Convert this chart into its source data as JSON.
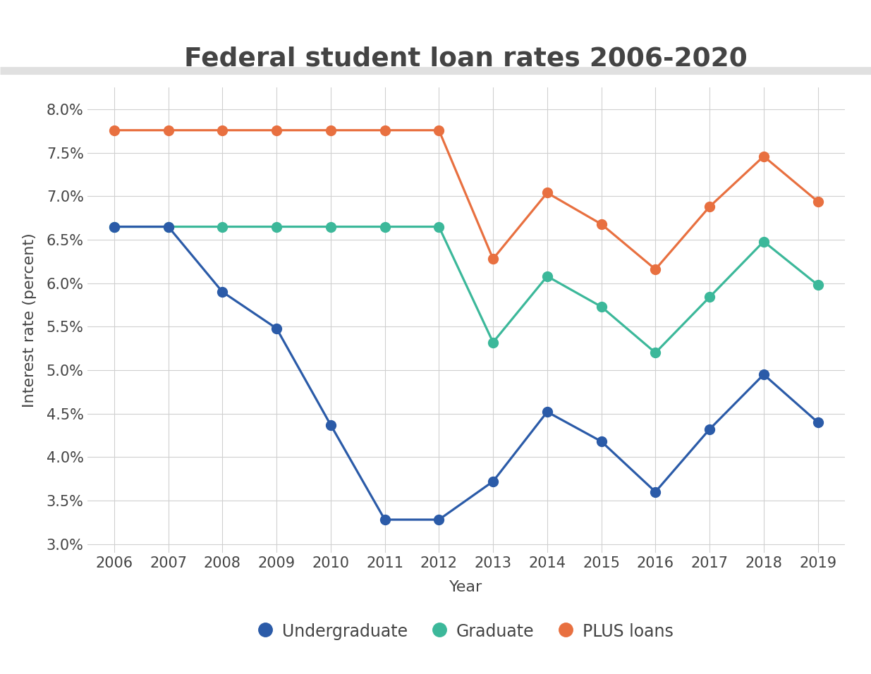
{
  "title": "Federal student loan rates 2006-2020",
  "xlabel": "Year",
  "ylabel": "Interest rate (percent)",
  "years": [
    2006,
    2007,
    2008,
    2009,
    2010,
    2011,
    2012,
    2013,
    2014,
    2015,
    2016,
    2017,
    2018,
    2019
  ],
  "undergraduate": [
    6.65,
    6.65,
    5.9,
    5.48,
    4.37,
    3.28,
    3.28,
    3.72,
    4.52,
    4.18,
    3.6,
    4.32,
    4.95,
    4.4
  ],
  "graduate": [
    6.65,
    6.65,
    6.65,
    6.65,
    6.65,
    6.65,
    6.65,
    5.32,
    6.08,
    5.73,
    5.2,
    5.84,
    6.48,
    5.98
  ],
  "plus_loans": [
    7.76,
    7.76,
    7.76,
    7.76,
    7.76,
    7.76,
    7.76,
    6.28,
    7.04,
    6.68,
    6.16,
    6.88,
    7.46,
    6.94
  ],
  "undergrad_color": "#2B5BA8",
  "grad_color": "#3CB89A",
  "plus_color": "#E87040",
  "background_color": "#ffffff",
  "grid_color": "#d0d0d0",
  "separator_color": "#e0e0e0",
  "text_color": "#444444",
  "ylim": [
    2.9,
    8.25
  ],
  "yticks": [
    3.0,
    3.5,
    4.0,
    4.5,
    5.0,
    5.5,
    6.0,
    6.5,
    7.0,
    7.5,
    8.0
  ],
  "title_fontsize": 27,
  "axis_label_fontsize": 16,
  "tick_fontsize": 15,
  "legend_fontsize": 17,
  "line_width": 2.3,
  "marker_size": 10
}
